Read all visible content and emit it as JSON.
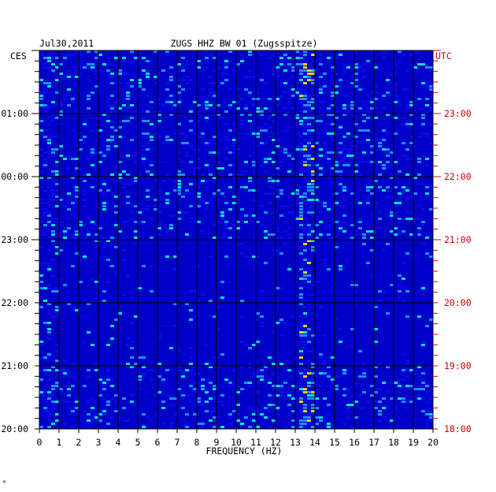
{
  "header": {
    "date": "Jul30,2011",
    "station": "ZUGS HHZ BW 01 (Zugsspitze)"
  },
  "left_axis_label": "CES",
  "right_axis_label": "UTC",
  "footer_mark": "*",
  "colors": {
    "background": "#0000c8",
    "grid": "#000000",
    "left_text": "#000000",
    "right_text": "#cc0000",
    "low": "#0a0ae6",
    "mid": "#1e90ff",
    "high": "#00e5e5",
    "peak": "#ffd000"
  },
  "chart_data": {
    "type": "heatmap",
    "title": "ZUGS HHZ BW 01 (Zugsspitze)",
    "date": "Jul30,2011",
    "xlabel": "FREQUENCY (HZ)",
    "xlim": [
      0,
      20
    ],
    "x_ticks": [
      "0",
      "1",
      "2",
      "3",
      "4",
      "5",
      "6",
      "7",
      "8",
      "9",
      "10",
      "11",
      "12",
      "13",
      "14",
      "15",
      "16",
      "17",
      "18",
      "19",
      "20"
    ],
    "y_left_ticks": [
      "01:00",
      "00:00",
      "23:00",
      "22:00",
      "21:00",
      "20:00"
    ],
    "y_right_ticks": [
      "23:00",
      "22:00",
      "21:00",
      "20:00",
      "19:00",
      "18:00"
    ],
    "y_range_utc": [
      "18:00",
      "24:00"
    ],
    "dominant_frequency_hz": 13.5,
    "grid": true
  }
}
